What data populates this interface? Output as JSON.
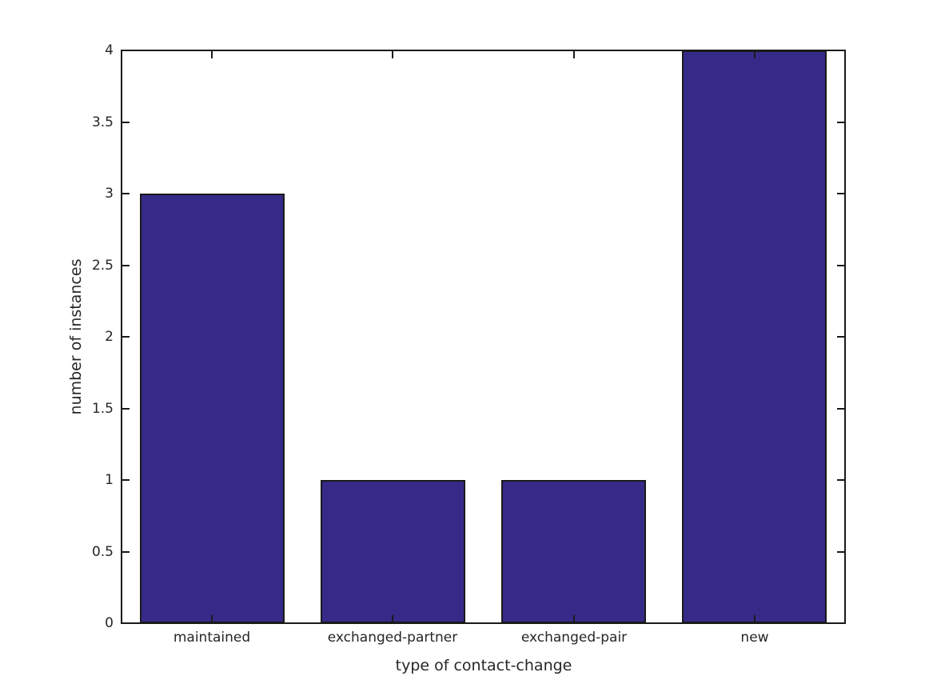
{
  "chart_data": {
    "type": "bar",
    "categories": [
      "maintained",
      "exchanged-partner",
      "exchanged-pair",
      "new"
    ],
    "values": [
      3,
      1,
      1,
      4
    ],
    "title": "",
    "xlabel": "type of contact-change",
    "ylabel": "number of instances",
    "ylim": [
      0,
      4
    ],
    "yticks": [
      0,
      0.5,
      1,
      1.5,
      2,
      2.5,
      3,
      3.5,
      4
    ],
    "ytick_labels": [
      "0",
      "0.5",
      "1",
      "1.5",
      "2",
      "2.5",
      "3",
      "3.5",
      "4"
    ],
    "bar_width_fraction": 0.8,
    "grid": false,
    "legend_position": "none",
    "colors": {
      "bar_fill": "#352a87",
      "bar_edge": "#1a1a1a",
      "axis": "#1a1a1a",
      "text": "#262626",
      "background": "#ffffff"
    }
  }
}
